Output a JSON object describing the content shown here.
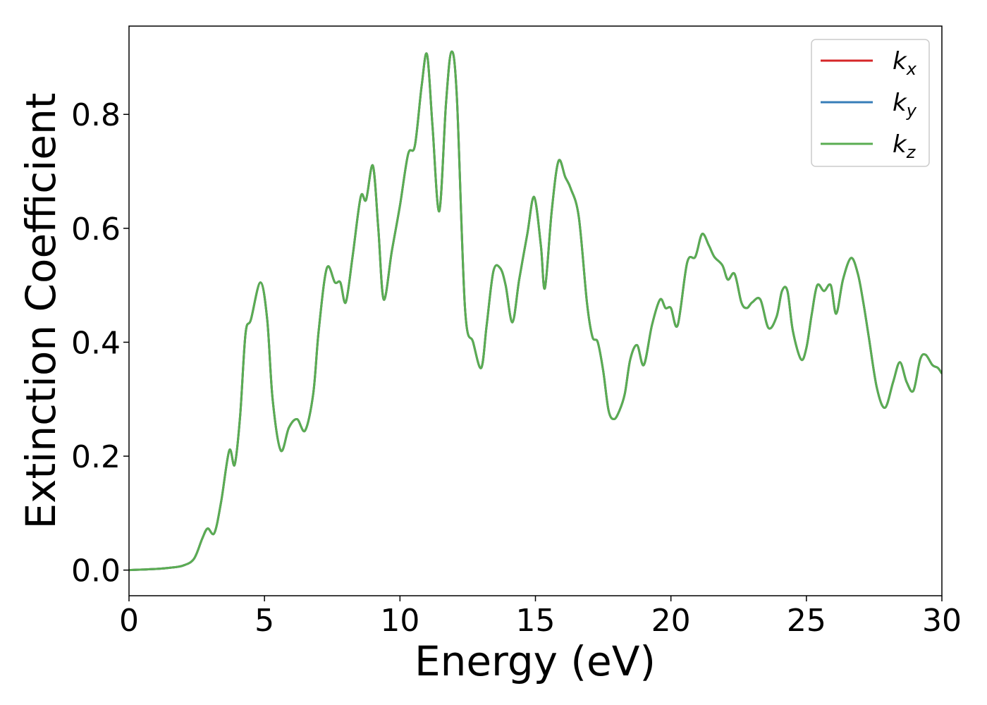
{
  "chart_data": {
    "type": "line",
    "xlabel": "Energy (eV)",
    "ylabel": "Extinction Coefficient",
    "xlim": [
      0,
      30
    ],
    "ylim": [
      -0.045,
      0.955
    ],
    "xticks": [
      0,
      5,
      10,
      15,
      20,
      25,
      30
    ],
    "xtick_labels": [
      "0",
      "5",
      "10",
      "15",
      "20",
      "25",
      "30"
    ],
    "yticks": [
      0.0,
      0.2,
      0.4,
      0.6,
      0.8
    ],
    "ytick_labels": [
      "0.0",
      "0.2",
      "0.4",
      "0.6",
      "0.8"
    ],
    "grid": false,
    "legend_position": "top-right",
    "series": [
      {
        "name": "k",
        "subscript": "x",
        "color": "#d62728"
      },
      {
        "name": "k",
        "subscript": "y",
        "color": "#377eb8"
      },
      {
        "name": "k",
        "subscript": "z",
        "color": "#5aad52"
      }
    ],
    "x": [
      0,
      0.5,
      1.0,
      1.5,
      2.0,
      2.4,
      2.7,
      2.9,
      3.15,
      3.4,
      3.7,
      3.9,
      4.1,
      4.3,
      4.5,
      4.85,
      5.1,
      5.3,
      5.6,
      5.9,
      6.2,
      6.5,
      6.8,
      7.0,
      7.3,
      7.6,
      7.8,
      8.0,
      8.25,
      8.55,
      8.75,
      9.0,
      9.2,
      9.4,
      9.7,
      10.0,
      10.3,
      10.55,
      10.8,
      11.0,
      11.2,
      11.45,
      11.7,
      11.9,
      12.1,
      12.4,
      12.7,
      13.0,
      13.2,
      13.45,
      13.7,
      13.9,
      14.15,
      14.4,
      14.7,
      14.95,
      15.2,
      15.35,
      15.6,
      15.85,
      16.1,
      16.3,
      16.6,
      16.9,
      17.1,
      17.3,
      17.5,
      17.7,
      17.9,
      18.1,
      18.3,
      18.5,
      18.75,
      19.0,
      19.3,
      19.6,
      19.8,
      20.0,
      20.25,
      20.6,
      20.9,
      21.15,
      21.4,
      21.6,
      21.9,
      22.1,
      22.35,
      22.6,
      22.8,
      23.0,
      23.3,
      23.6,
      23.9,
      24.1,
      24.3,
      24.5,
      24.8,
      25.0,
      25.2,
      25.4,
      25.65,
      25.9,
      26.1,
      26.35,
      26.65,
      26.9,
      27.1,
      27.3,
      27.6,
      27.9,
      28.2,
      28.45,
      28.7,
      28.95,
      29.2,
      29.4,
      29.65,
      29.85,
      30.0
    ],
    "values": [
      0.0,
      0.001,
      0.002,
      0.004,
      0.008,
      0.02,
      0.055,
      0.073,
      0.065,
      0.12,
      0.21,
      0.185,
      0.27,
      0.415,
      0.44,
      0.505,
      0.44,
      0.3,
      0.21,
      0.25,
      0.265,
      0.245,
      0.31,
      0.42,
      0.53,
      0.505,
      0.505,
      0.47,
      0.55,
      0.655,
      0.65,
      0.71,
      0.6,
      0.475,
      0.56,
      0.64,
      0.73,
      0.745,
      0.85,
      0.905,
      0.78,
      0.63,
      0.82,
      0.91,
      0.83,
      0.46,
      0.4,
      0.355,
      0.43,
      0.525,
      0.53,
      0.5,
      0.435,
      0.51,
      0.59,
      0.655,
      0.57,
      0.495,
      0.63,
      0.718,
      0.69,
      0.67,
      0.62,
      0.47,
      0.41,
      0.4,
      0.35,
      0.28,
      0.265,
      0.28,
      0.31,
      0.37,
      0.395,
      0.36,
      0.43,
      0.475,
      0.46,
      0.46,
      0.43,
      0.54,
      0.55,
      0.59,
      0.57,
      0.55,
      0.535,
      0.51,
      0.52,
      0.47,
      0.46,
      0.47,
      0.475,
      0.425,
      0.445,
      0.49,
      0.49,
      0.42,
      0.37,
      0.39,
      0.45,
      0.5,
      0.49,
      0.5,
      0.45,
      0.51,
      0.548,
      0.52,
      0.47,
      0.41,
      0.32,
      0.285,
      0.33,
      0.365,
      0.33,
      0.315,
      0.37,
      0.378,
      0.36,
      0.355,
      0.345
    ]
  }
}
